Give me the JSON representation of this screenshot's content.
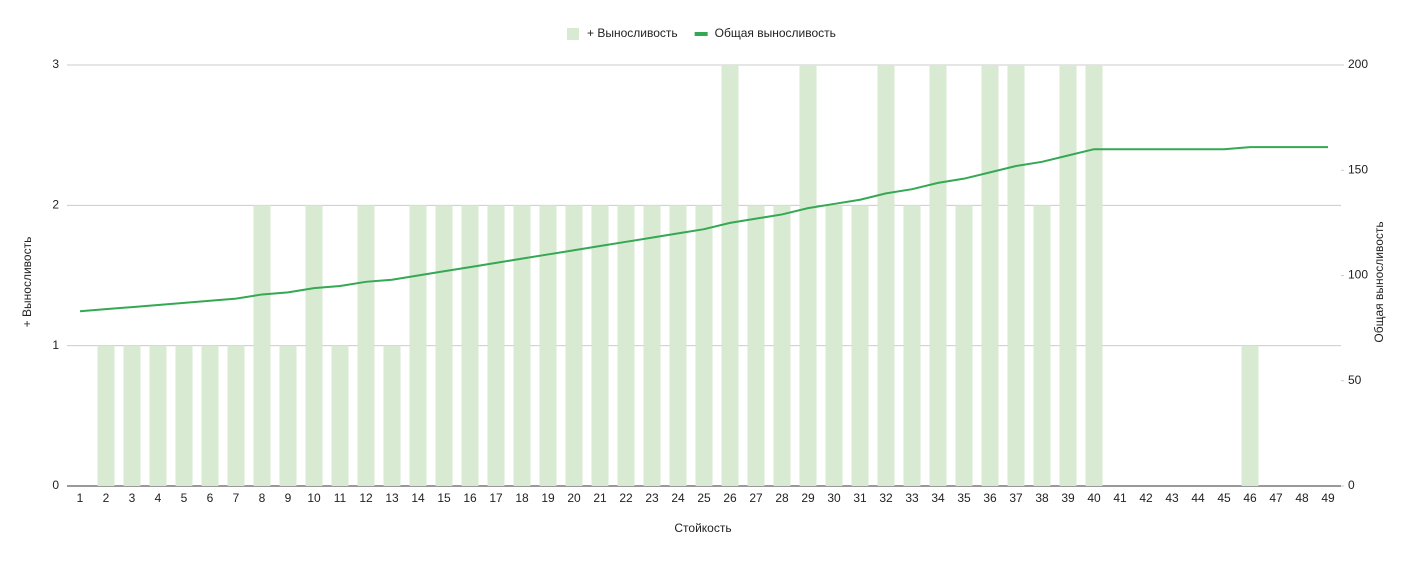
{
  "chart_data": {
    "type": "combo",
    "x_label": "Стойкость",
    "y_label": "+ Выносливость",
    "y2_label": "Общая выносливость",
    "categories": [
      "1",
      "2",
      "3",
      "4",
      "5",
      "6",
      "7",
      "8",
      "9",
      "10",
      "11",
      "12",
      "13",
      "14",
      "15",
      "16",
      "17",
      "18",
      "19",
      "20",
      "21",
      "22",
      "23",
      "24",
      "25",
      "26",
      "27",
      "28",
      "29",
      "30",
      "31",
      "32",
      "33",
      "34",
      "35",
      "36",
      "37",
      "38",
      "39",
      "40",
      "41",
      "42",
      "43",
      "44",
      "45",
      "46",
      "47",
      "48",
      "49"
    ],
    "series": [
      {
        "name": "+ Выносливость",
        "type": "bar",
        "color": "#d9ead3",
        "values": [
          0,
          1,
          1,
          1,
          1,
          1,
          1,
          2,
          1,
          2,
          1,
          2,
          1,
          2,
          2,
          2,
          2,
          2,
          2,
          2,
          2,
          2,
          2,
          2,
          2,
          3,
          2,
          2,
          3,
          2,
          2,
          3,
          2,
          3,
          2,
          3,
          3,
          2,
          3,
          3,
          0,
          0,
          0,
          0,
          0,
          1,
          0,
          0,
          0
        ]
      },
      {
        "name": "Общая выносливость",
        "type": "line",
        "axis": "y2",
        "color": "#34a853",
        "values": [
          83,
          84,
          85,
          86,
          87,
          88,
          89,
          91,
          92,
          94,
          95,
          97,
          98,
          100,
          102,
          104,
          106,
          108,
          110,
          112,
          114,
          116,
          118,
          120,
          122,
          125,
          127,
          129,
          132,
          134,
          136,
          139,
          141,
          144,
          146,
          149,
          152,
          154,
          157,
          160,
          160,
          160,
          160,
          160,
          160,
          161,
          161,
          161,
          161
        ]
      }
    ],
    "ylim": [
      0,
      3
    ],
    "yticks": [
      0,
      1,
      2,
      3
    ],
    "y2lim": [
      0,
      200
    ],
    "y2ticks": [
      0,
      50,
      100,
      150,
      200
    ],
    "grid": true,
    "legend": "top"
  }
}
